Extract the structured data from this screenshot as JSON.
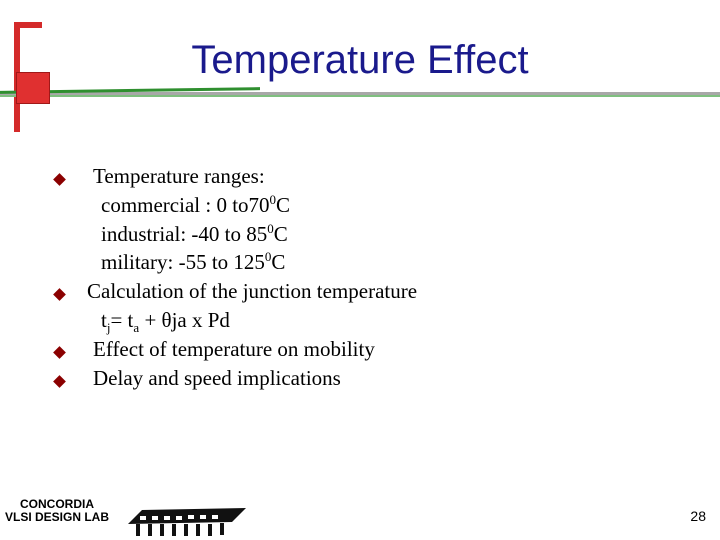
{
  "slide": {
    "title": "Temperature Effect",
    "bullets": [
      {
        "text": "Temperature ranges:",
        "sublines": [
          {
            "prefix": "commercial : 0 to70",
            "sup": "0",
            "suffix": "C"
          },
          {
            "prefix": "industrial: -40 to 85",
            "sup": "0",
            "suffix": "C"
          },
          {
            "prefix": "military: -55 to 125",
            "sup": "0",
            "suffix": "C"
          }
        ]
      },
      {
        "text": "Calculation of  the junction temperature",
        "formula": {
          "t": "t",
          "j": "j",
          "eq": "= t",
          "a": "a",
          "rest": " + θja x Pd"
        }
      },
      {
        "text": "Effect of temperature on mobility"
      },
      {
        "text": "Delay and speed implications"
      }
    ],
    "footer": {
      "logo_line1": "CONCORDIA",
      "logo_line2": "VLSI DESIGN LAB",
      "page_number": "28"
    }
  },
  "colors": {
    "title": "#1a1a8c",
    "accent_red": "#d42a2a",
    "bullet": "#8b0000",
    "rule_grey": "#a8a8a8",
    "rule_green": "#2f8f2f"
  },
  "icons": {
    "bullet": "diamond-bullet-icon",
    "logo": "chip-logo-icon"
  }
}
